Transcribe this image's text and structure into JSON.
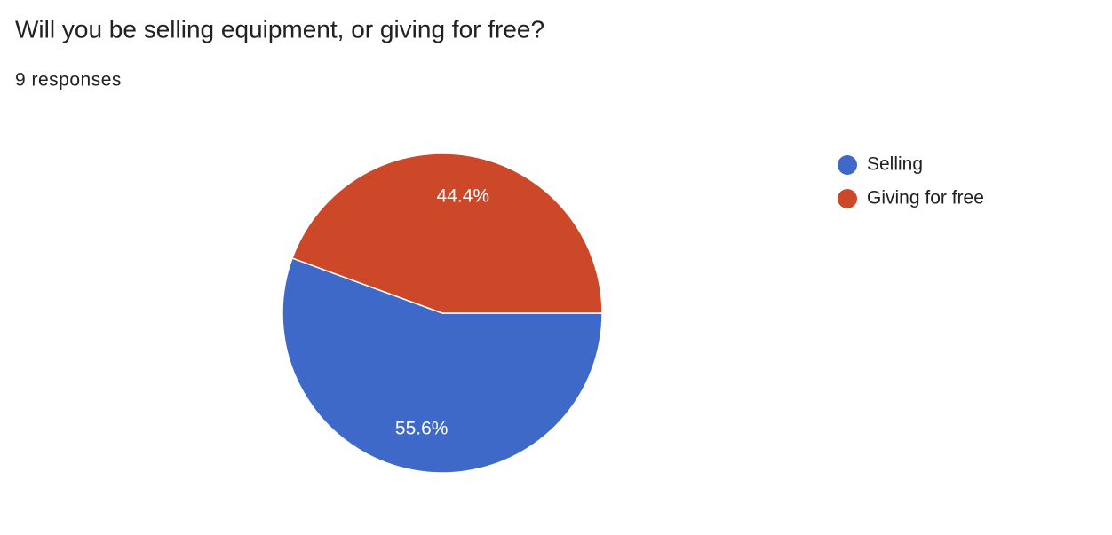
{
  "chart_data": {
    "type": "pie",
    "title": "Will you be selling equipment, or giving for free?",
    "subtitle": "9 responses",
    "categories": [
      "Selling",
      "Giving for free"
    ],
    "values": [
      55.6,
      44.4
    ],
    "value_labels": [
      "55.6%",
      "44.4%"
    ],
    "colors": [
      "#3e69c8",
      "#cc4828"
    ],
    "legend": "right"
  }
}
